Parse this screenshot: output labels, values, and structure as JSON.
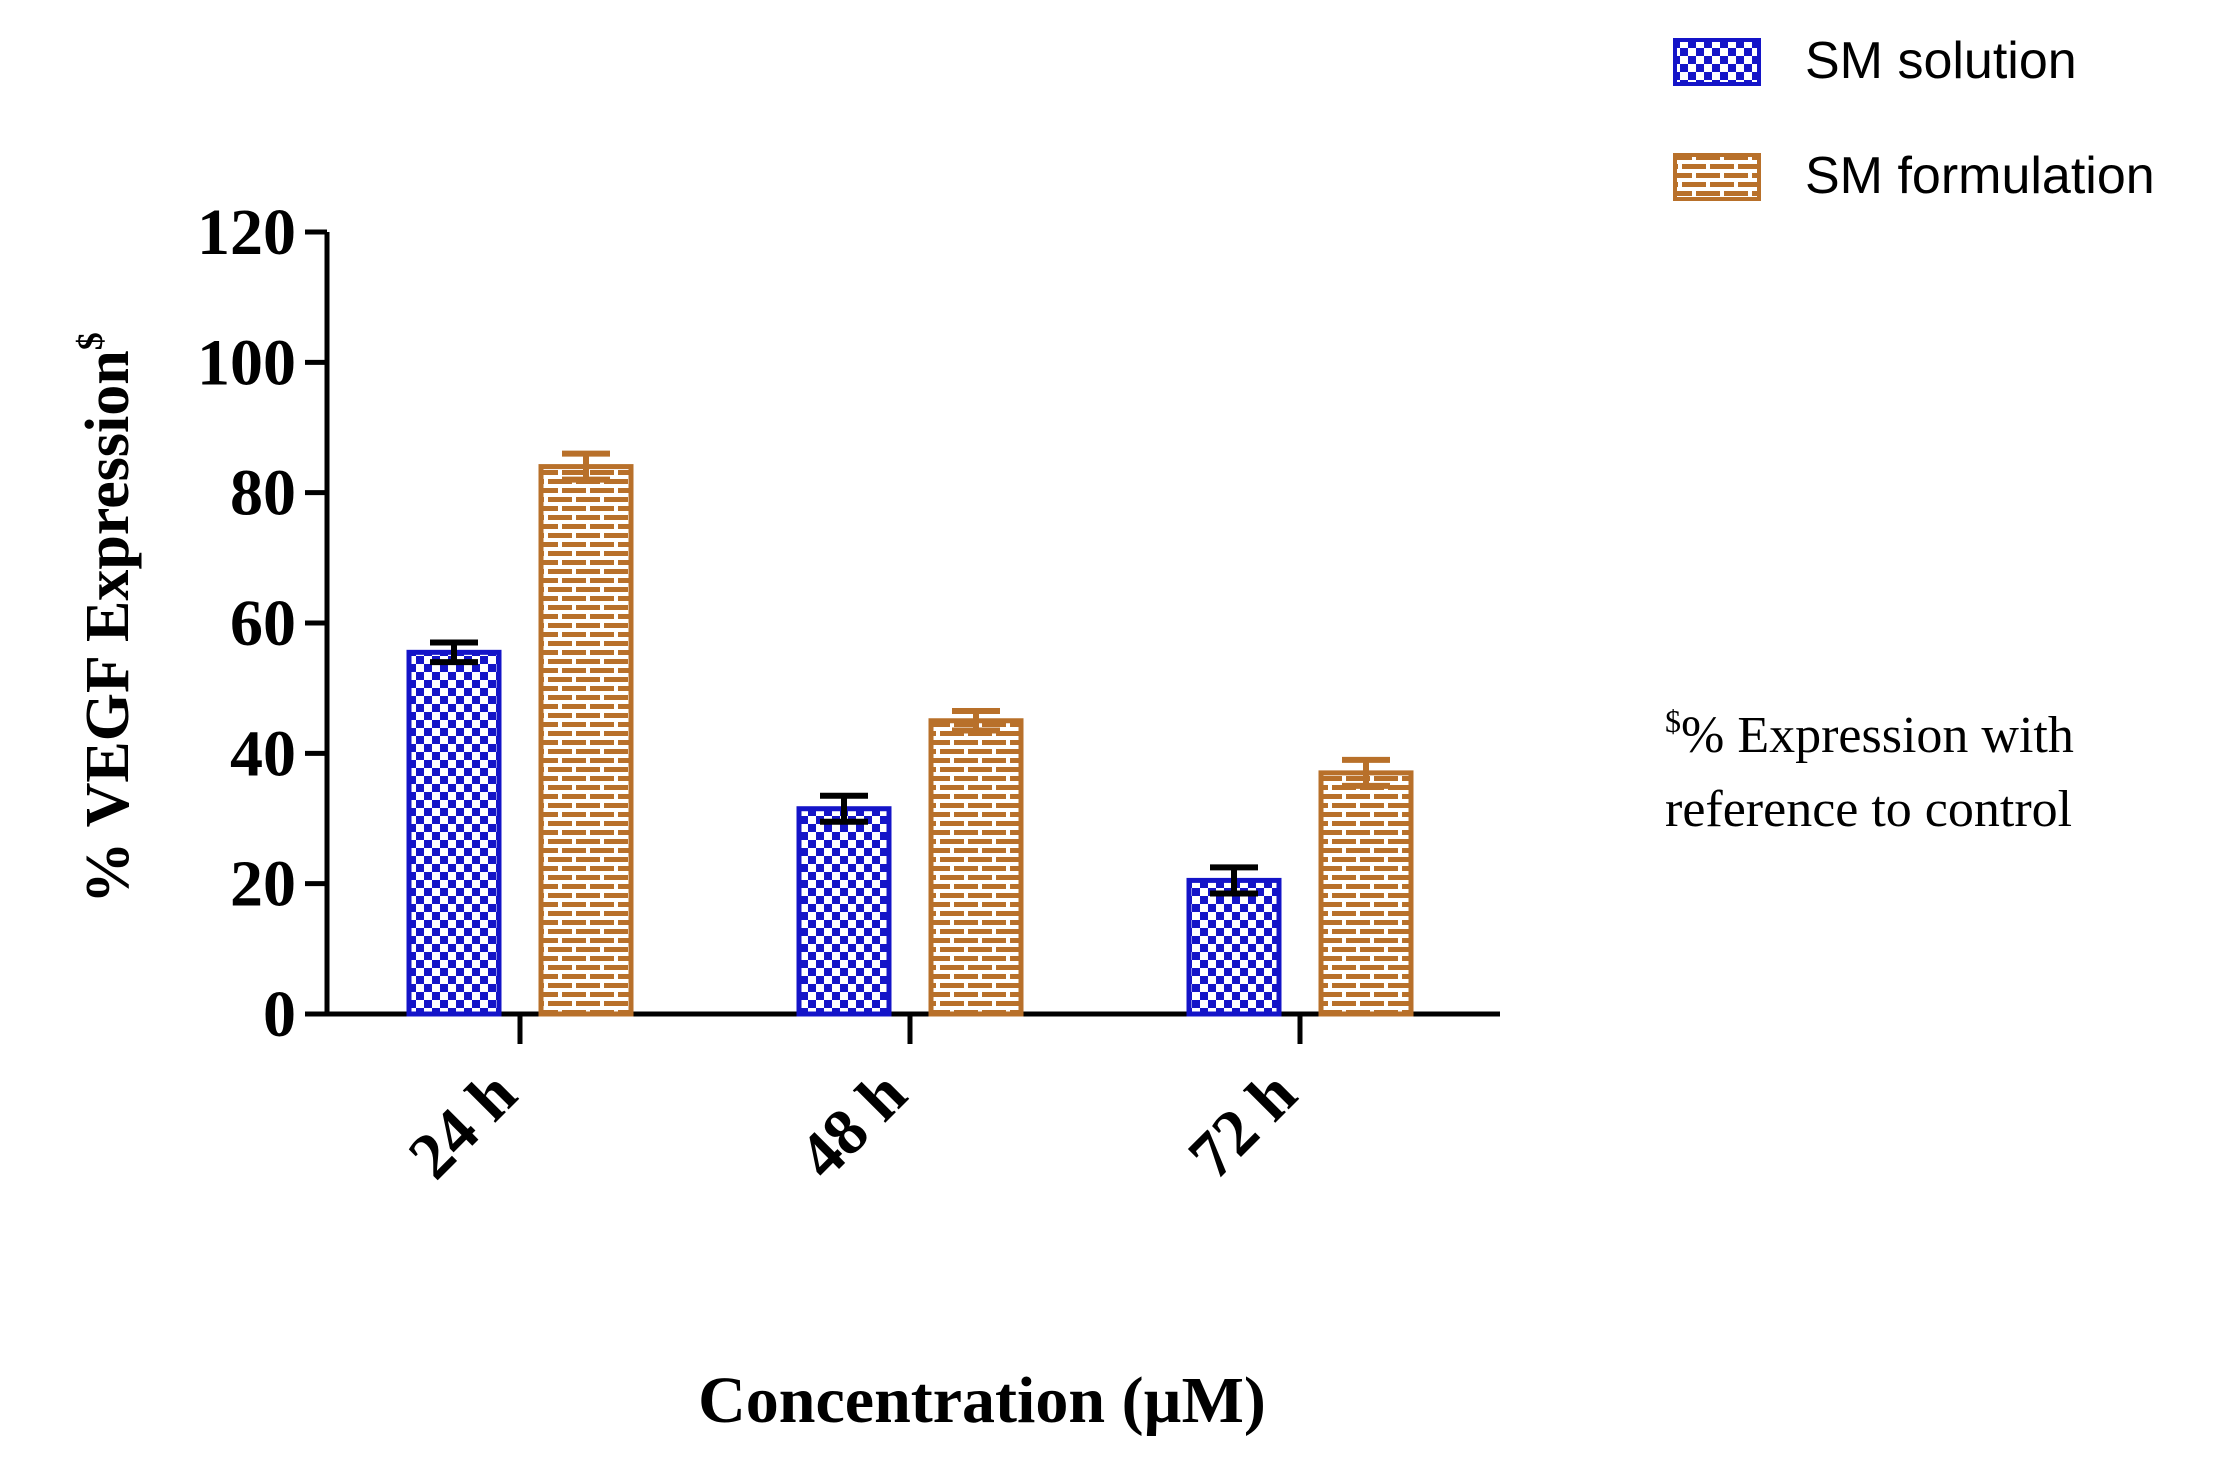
{
  "chart_data": {
    "type": "bar",
    "title": "",
    "xlabel": "Concentration (µM)",
    "ylabel": "% VEGF Expression",
    "ylabel_superscript": "$",
    "ylim": [
      0,
      120
    ],
    "yticks": [
      0,
      20,
      40,
      60,
      80,
      100,
      120
    ],
    "categories": [
      "24 h",
      "48 h",
      "72 h"
    ],
    "series": [
      {
        "name": "SM solution",
        "values": [
          55.5,
          31.5,
          20.5
        ],
        "errors": [
          1.5,
          2.0,
          2.0
        ],
        "color": "#1414c8",
        "pattern": "checkerboard"
      },
      {
        "name": "SM formulation",
        "values": [
          84,
          45,
          37
        ],
        "errors": [
          2.0,
          1.5,
          2.0
        ],
        "color": "#b8702a",
        "pattern": "brick"
      }
    ],
    "legend_position": "top-right",
    "annotation": {
      "superscript": "$",
      "line1": "% Expression with",
      "line2": "reference to control"
    }
  }
}
